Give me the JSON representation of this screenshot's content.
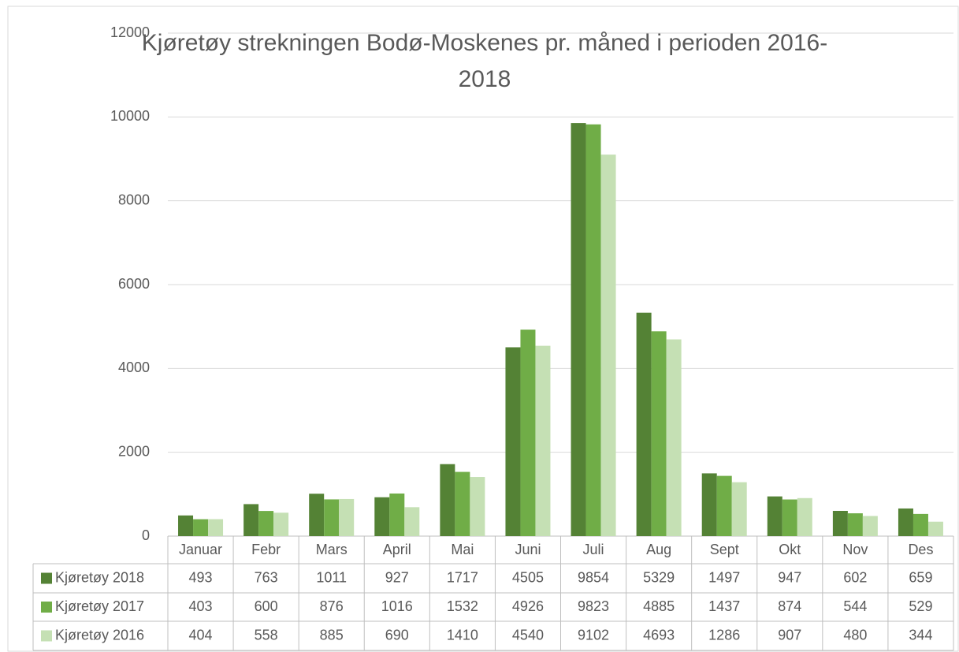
{
  "chart_data": {
    "type": "bar",
    "title": "Kjøretøy strekningen Bodø-Moskenes pr. måned i perioden 2016-2018",
    "categories": [
      "Januar",
      "Febr",
      "Mars",
      "April",
      "Mai",
      "Juni",
      "Juli",
      "Aug",
      "Sept",
      "Okt",
      "Nov",
      "Des"
    ],
    "series": [
      {
        "name": "Kjøretøy 2018",
        "color": "#548235",
        "values": [
          493,
          763,
          1011,
          927,
          1717,
          4505,
          9854,
          5329,
          1497,
          947,
          602,
          659
        ]
      },
      {
        "name": "Kjøretøy 2017",
        "color": "#70ad47",
        "values": [
          403,
          600,
          876,
          1016,
          1532,
          4926,
          9823,
          4885,
          1437,
          874,
          544,
          529
        ]
      },
      {
        "name": "Kjøretøy 2016",
        "color": "#c5e0b4",
        "values": [
          404,
          558,
          885,
          690,
          1410,
          4540,
          9102,
          4693,
          1286,
          907,
          480,
          344
        ]
      }
    ],
    "ylim": [
      0,
      12000
    ],
    "yticks": [
      0,
      2000,
      4000,
      6000,
      8000,
      10000,
      12000
    ],
    "grid": true
  }
}
